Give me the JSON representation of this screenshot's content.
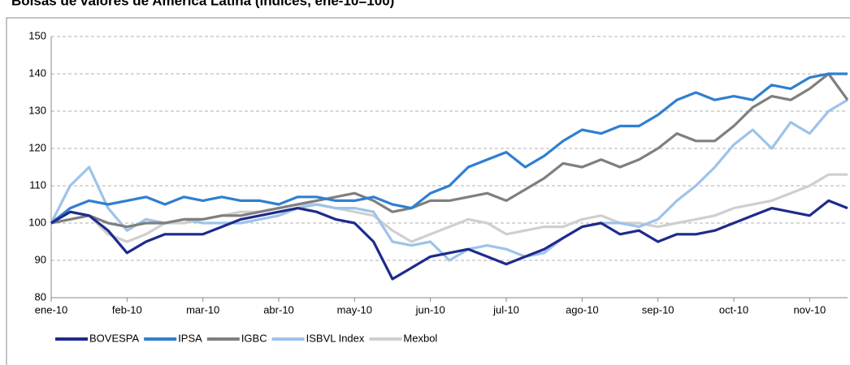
{
  "chart_data": {
    "type": "line",
    "title": "Bolsas de valores de América Latina (índices, ene-10=100)",
    "categories": [
      "ene-10",
      null,
      null,
      null,
      "feb-10",
      null,
      null,
      null,
      "mar-10",
      null,
      null,
      null,
      "abr-10",
      null,
      null,
      null,
      "may-10",
      null,
      null,
      null,
      "jun-10",
      null,
      null,
      null,
      "jul-10",
      null,
      null,
      null,
      "ago-10",
      null,
      null,
      null,
      "sep-10",
      null,
      null,
      null,
      "oct-10",
      null,
      null,
      null,
      "nov-10",
      null,
      null
    ],
    "series": [
      {
        "name": "BOVESPA",
        "color": "#1f2a8c",
        "values": [
          100,
          103,
          102,
          98,
          92,
          95,
          97,
          97,
          97,
          99,
          101,
          102,
          103,
          104,
          103,
          101,
          100,
          95,
          85,
          88,
          91,
          92,
          93,
          91,
          89,
          91,
          93,
          96,
          99,
          100,
          97,
          98,
          95,
          97,
          97,
          98,
          100,
          102,
          104,
          103,
          102,
          106,
          104
        ]
      },
      {
        "name": "IPSA",
        "color": "#2f7fd0",
        "values": [
          100,
          104,
          106,
          105,
          106,
          107,
          105,
          107,
          106,
          107,
          106,
          106,
          105,
          107,
          107,
          106,
          106,
          107,
          105,
          104,
          108,
          110,
          115,
          117,
          119,
          115,
          118,
          122,
          125,
          124,
          126,
          126,
          129,
          133,
          135,
          133,
          134,
          133,
          137,
          136,
          139,
          140,
          140
        ]
      },
      {
        "name": "IGBC",
        "color": "#7f7f7f",
        "values": [
          100,
          101,
          102,
          100,
          99,
          100,
          100,
          101,
          101,
          102,
          102,
          103,
          104,
          105,
          106,
          107,
          108,
          106,
          103,
          104,
          106,
          106,
          107,
          108,
          106,
          109,
          112,
          116,
          115,
          117,
          115,
          117,
          120,
          124,
          122,
          122,
          126,
          131,
          134,
          133,
          136,
          140,
          133
        ]
      },
      {
        "name": "ISBVL Index",
        "color": "#9dc3ea",
        "values": [
          100,
          110,
          115,
          104,
          98,
          101,
          100,
          101,
          100,
          100,
          100,
          101,
          102,
          104,
          105,
          104,
          104,
          103,
          95,
          94,
          95,
          90,
          93,
          94,
          93,
          91,
          92,
          96,
          99,
          100,
          100,
          99,
          101,
          106,
          110,
          115,
          121,
          125,
          120,
          127,
          124,
          130,
          133
        ]
      },
      {
        "name": "Mexbol",
        "color": "#cfcfcf",
        "values": [
          100,
          103,
          102,
          97,
          95,
          97,
          100,
          100,
          101,
          102,
          103,
          103,
          104,
          105,
          105,
          104,
          103,
          102,
          98,
          95,
          97,
          99,
          101,
          100,
          97,
          98,
          99,
          99,
          101,
          102,
          100,
          100,
          99,
          100,
          101,
          102,
          104,
          105,
          106,
          108,
          110,
          113,
          113
        ]
      }
    ],
    "ylim": [
      80,
      150
    ],
    "yticks": [
      80,
      90,
      100,
      110,
      120,
      130,
      140,
      150
    ],
    "grid": true
  }
}
